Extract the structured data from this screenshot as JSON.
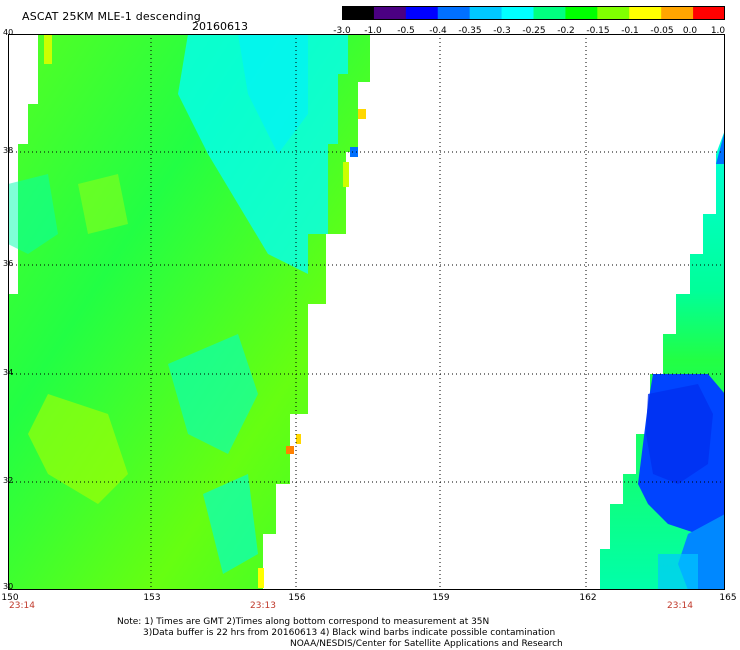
{
  "header": {
    "title": "ASCAT 25KM MLE-1 descending",
    "date": "20160613"
  },
  "colorbar": {
    "labels": [
      "-3.0",
      "-1.0",
      "-0.5",
      "-0.4",
      "-0.35",
      "-0.3",
      "-0.25",
      "-0.2",
      "-0.15",
      "-0.1",
      "-0.05",
      "0.0",
      "1.0"
    ],
    "colors": [
      "#000000",
      "#4b0082",
      "#0000ff",
      "#0070ff",
      "#00c8ff",
      "#00ffff",
      "#00ff80",
      "#00ff00",
      "#80ff00",
      "#ffff00",
      "#ffa500",
      "#ff0000"
    ]
  },
  "map": {
    "lat_labels": [
      "40",
      "38",
      "36",
      "34",
      "32",
      "30"
    ],
    "lon_labels": [
      "150",
      "153",
      "156",
      "159",
      "162",
      "165"
    ],
    "time_labels": [
      "23:14",
      "23:13",
      "23:14"
    ]
  },
  "footer": {
    "line1": "Note: 1) Times are GMT 2)Times along bottom correspond to measurement at 35N",
    "line2": "3)Data buffer is 22 hrs from 20160613 4) Black wind barbs indicate possible contamination",
    "line3": "NOAA/NESDIS/Center for Satellite Applications and Research"
  }
}
